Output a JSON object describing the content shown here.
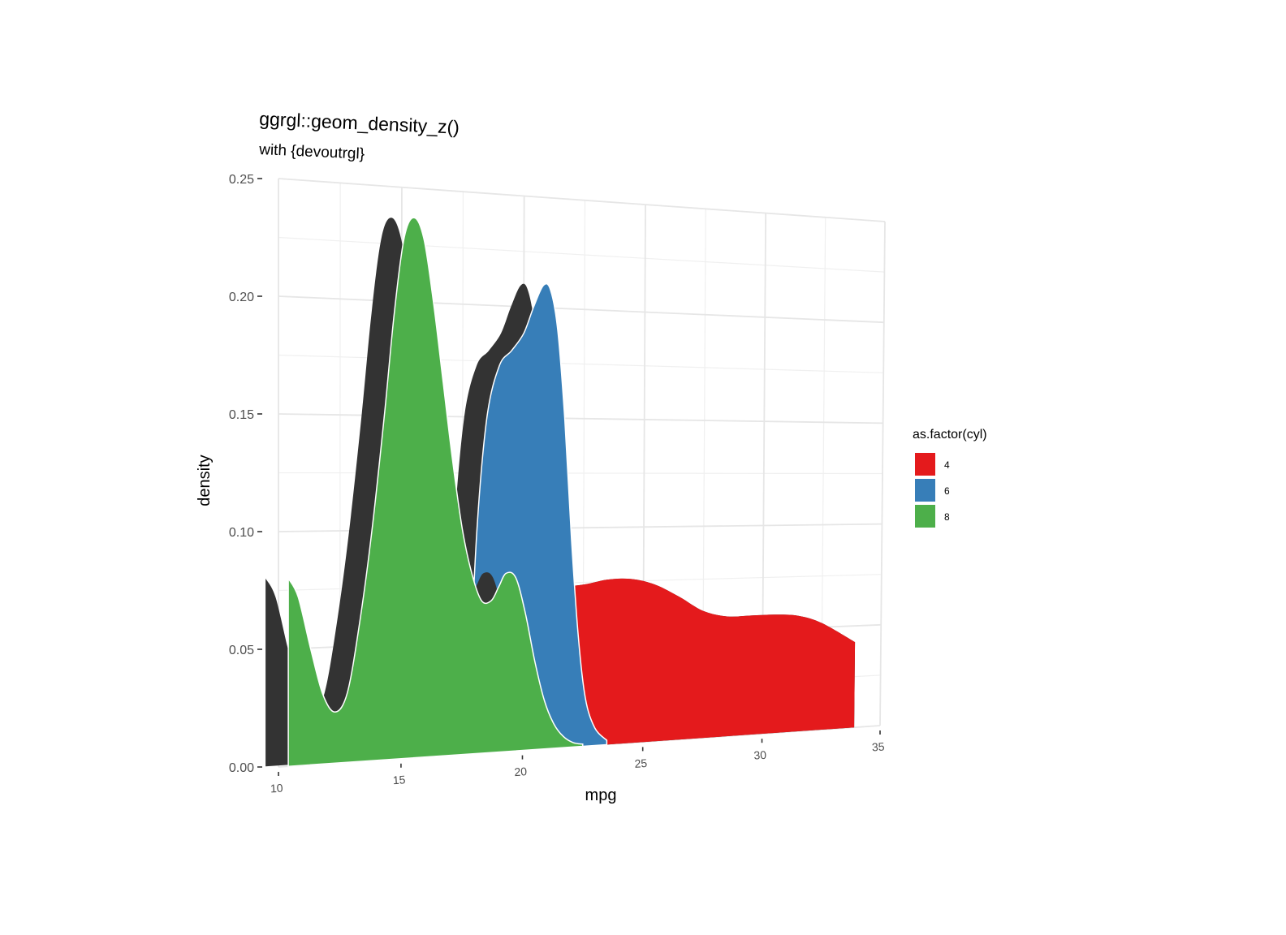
{
  "chart_data": {
    "type": "area",
    "title": "ggrgl::geom_density_z()",
    "subtitle": "with {devoutrgl}",
    "xlabel": "mpg",
    "ylabel": "density",
    "xlim": [
      10,
      35
    ],
    "ylim": [
      0,
      0.25
    ],
    "x_ticks": [
      "10",
      "15",
      "20",
      "25",
      "30",
      "35"
    ],
    "y_ticks": [
      "0.00",
      "0.05",
      "0.10",
      "0.15",
      "0.20",
      "0.25"
    ],
    "grid": true,
    "legend": {
      "title": "as.factor(cyl)",
      "position": "right",
      "entries": [
        {
          "label": "4",
          "color": "#E41A1C"
        },
        {
          "label": "6",
          "color": "#377EB8"
        },
        {
          "label": "8",
          "color": "#4DAF4A"
        }
      ]
    },
    "series": [
      {
        "name": "4",
        "color": "#E41A1C",
        "x": [
          21.4,
          22.5,
          23.5,
          24.5,
          25.5,
          26.5,
          27.5,
          28.5,
          29.5,
          30.5,
          31.5,
          32.5,
          33.9
        ],
        "y": [
          0.073,
          0.074,
          0.076,
          0.076,
          0.073,
          0.067,
          0.06,
          0.057,
          0.057,
          0.057,
          0.056,
          0.052,
          0.042
        ]
      },
      {
        "name": "6",
        "color": "#377EB8",
        "x": [
          17.8,
          18.1,
          18.5,
          19.0,
          19.5,
          20.0,
          20.4,
          20.8,
          21.1,
          21.4,
          21.7,
          22.0,
          22.3,
          22.6,
          23.0,
          23.5
        ],
        "y": [
          0.03,
          0.1,
          0.15,
          0.173,
          0.18,
          0.188,
          0.2,
          0.21,
          0.208,
          0.19,
          0.15,
          0.095,
          0.05,
          0.022,
          0.008,
          0.002
        ]
      },
      {
        "name": "8",
        "color": "#4DAF4A",
        "x": [
          10.4,
          10.8,
          11.3,
          11.8,
          12.3,
          12.8,
          13.3,
          13.8,
          14.3,
          14.7,
          15.1,
          15.5,
          15.9,
          16.3,
          16.7,
          17.1,
          17.5,
          17.9,
          18.3,
          18.7,
          19.0,
          19.3,
          19.7,
          20.1,
          20.5,
          20.9,
          21.3,
          21.7,
          22.1,
          22.5
        ],
        "y": [
          0.08,
          0.072,
          0.05,
          0.03,
          0.022,
          0.03,
          0.06,
          0.1,
          0.15,
          0.195,
          0.228,
          0.237,
          0.228,
          0.2,
          0.165,
          0.13,
          0.1,
          0.08,
          0.068,
          0.068,
          0.074,
          0.08,
          0.078,
          0.062,
          0.04,
          0.022,
          0.011,
          0.005,
          0.002,
          0.001
        ]
      }
    ]
  }
}
